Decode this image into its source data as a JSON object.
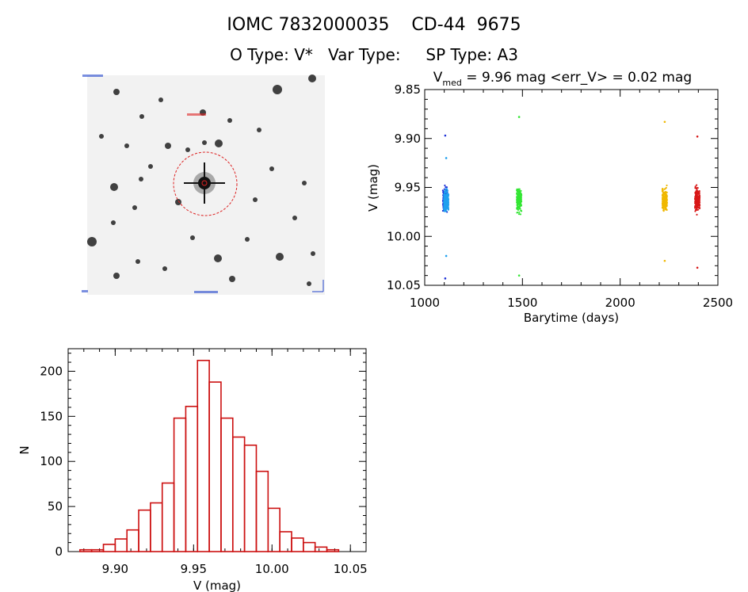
{
  "header": {
    "line1": "IOMC 7832000035    CD-44  9675",
    "line2": "O Type: V*   Var Type:     SP Type: A3"
  },
  "colors": {
    "series_blue": "#1e32d8",
    "series_lightblue": "#1fa0ee",
    "series_green": "#33e633",
    "series_yellow": "#f0b800",
    "series_red": "#d81818",
    "histogram": "#cc1010",
    "finder_circle": "#dd2222",
    "finder_label": "#2244cc"
  },
  "chart_data": [
    {
      "type": "scatter",
      "title_prefix": "V",
      "title_subscript": "med",
      "title_rest": " = 9.96 mag <err_V> = 0.02 mag",
      "xlabel": "Barytime (days)",
      "ylabel": "V (mag)",
      "xlim": [
        1000,
        2500
      ],
      "ylim": [
        10.05,
        9.85
      ],
      "y_reversed": true,
      "xticks": [
        "1000",
        "1500",
        "2000",
        "2500"
      ],
      "yticks": [
        "9.85",
        "9.90",
        "9.95",
        "10.00",
        "10.05"
      ],
      "series": [
        {
          "x_center": 1105,
          "y_min": 9.897,
          "y_max": 10.043,
          "color": "#1e32d8"
        },
        {
          "x_center": 1110,
          "y_min": 9.92,
          "y_max": 10.02,
          "color": "#1fa0ee"
        },
        {
          "x_center": 1483,
          "y_min": 9.878,
          "y_max": 10.04,
          "color": "#33e633"
        },
        {
          "x_center": 2228,
          "y_min": 9.883,
          "y_max": 10.025,
          "color": "#f0b800"
        },
        {
          "x_center": 2395,
          "y_min": 9.898,
          "y_max": 10.032,
          "color": "#d81818"
        }
      ]
    },
    {
      "type": "bar",
      "xlabel": "V (mag)",
      "ylabel": "N",
      "xlim": [
        9.87,
        10.06
      ],
      "ylim": [
        0,
        225
      ],
      "xticks": [
        "9.90",
        "9.95",
        "10.00",
        "10.05"
      ],
      "yticks": [
        "0",
        "50",
        "100",
        "150",
        "200"
      ],
      "bin_start": 9.8775,
      "bin_width": 0.0075,
      "counts": [
        2,
        2,
        8,
        14,
        24,
        46,
        54,
        76,
        148,
        161,
        212,
        188,
        148,
        127,
        118,
        89,
        48,
        22,
        15,
        10,
        5,
        2
      ]
    }
  ]
}
